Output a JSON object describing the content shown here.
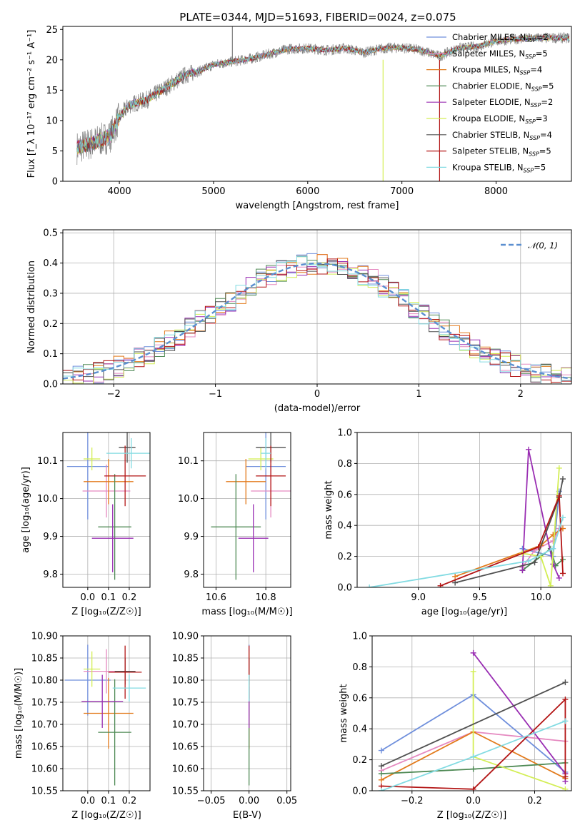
{
  "figure": {
    "title": "PLATE=0344, MJD=51693, FIBERID=0024, z=0.075"
  },
  "colors": {
    "Chabrier MILES": "#6f8fdc",
    "Salpeter MILES": "#e589c0",
    "Kroupa MILES": "#e27a1b",
    "Chabrier ELODIE": "#4f8a55",
    "Salpeter ELODIE": "#9a2fb3",
    "Kroupa ELODIE": "#d3ee55",
    "Chabrier STELIB": "#505050",
    "Salpeter STELIB": "#b31515",
    "Kroupa STELIB": "#82dbe2",
    "gaussian": "#5b8fd0",
    "data_spectrum": "#808080"
  },
  "chart_data": [
    {
      "id": "spectrum",
      "type": "line",
      "title": "PLATE=0344, MJD=51693, FIBERID=0024, z=0.075",
      "xlabel": "wavelength [Angstrom, rest frame]",
      "ylabel": "Flux [f_λ 10⁻¹⁷ erg cm⁻² s⁻¹ A⁻¹]",
      "xlim": [
        3400,
        8800
      ],
      "ylim": [
        0,
        25.5
      ],
      "xticks": [
        4000,
        5000,
        6000,
        7000,
        8000
      ],
      "yticks": [
        0,
        5,
        10,
        15,
        20,
        25
      ],
      "grid": false,
      "legend_position": "upper right",
      "legend": [
        {
          "name": "Chabrier MILES",
          "nssp": 2
        },
        {
          "name": "Salpeter MILES",
          "nssp": 5
        },
        {
          "name": "Kroupa MILES",
          "nssp": 4
        },
        {
          "name": "Chabrier ELODIE",
          "nssp": 5
        },
        {
          "name": "Salpeter ELODIE",
          "nssp": 2
        },
        {
          "name": "Kroupa ELODIE",
          "nssp": 3
        },
        {
          "name": "Chabrier STELIB",
          "nssp": 4
        },
        {
          "name": "Salpeter STELIB",
          "nssp": 5
        },
        {
          "name": "Kroupa STELIB",
          "nssp": 5
        }
      ],
      "continuum_x": [
        3550,
        3700,
        3900,
        4000,
        4100,
        4300,
        4500,
        4700,
        4860,
        5000,
        5200,
        5400,
        5600,
        5800,
        6000,
        6200,
        6400,
        6600,
        6800,
        7000,
        7200,
        7400,
        7600,
        7800,
        8000,
        8200,
        8400,
        8780
      ],
      "continuum_y": [
        5.5,
        6.2,
        7.4,
        10.5,
        12.5,
        13.5,
        15.5,
        17.5,
        18.2,
        19.2,
        19.7,
        20.2,
        21.0,
        21.8,
        21.9,
        21.6,
        21.9,
        21.2,
        21.9,
        22.0,
        21.6,
        20.6,
        21.9,
        22.2,
        23.1,
        23.4,
        23.6,
        23.6
      ],
      "spikes": [
        {
          "x": 5200,
          "y": 25.5
        },
        {
          "x": 6800,
          "y": 0
        },
        {
          "x": 7400,
          "y": 0
        }
      ]
    },
    {
      "id": "residuals",
      "type": "histogram",
      "xlabel": "(data-model)/error",
      "ylabel": "Normed distribution",
      "xlim": [
        -2.5,
        2.5
      ],
      "ylim": [
        0,
        0.51
      ],
      "xticks": [
        -2,
        -1,
        0,
        1,
        2
      ],
      "yticks": [
        0.0,
        0.1,
        0.2,
        0.3,
        0.4,
        0.5
      ],
      "grid": true,
      "bin_width": 0.1,
      "gaussian_label": "𝒩(0, 1)",
      "legend_position": "upper right"
    },
    {
      "id": "age-vs-z",
      "type": "errorbar",
      "xlabel": "Z [log₁₀(Z/Z☉)]",
      "ylabel": "age  [log₁₀(age/yr)]",
      "xlim": [
        -0.12,
        0.3
      ],
      "ylim": [
        9.765,
        10.175
      ],
      "xticks": [
        0.0,
        0.1,
        0.2
      ],
      "yticks": [
        9.8,
        9.9,
        10.0,
        10.1
      ],
      "grid": true,
      "series": [
        {
          "name": "Chabrier MILES",
          "x": 0.0,
          "xerr": 0.1,
          "y": 10.085,
          "yerr": 0.14
        },
        {
          "name": "Salpeter MILES",
          "x": 0.09,
          "xerr": 0.115,
          "y": 10.02,
          "yerr": 0.07
        },
        {
          "name": "Kroupa MILES",
          "x": 0.1,
          "xerr": 0.12,
          "y": 10.045,
          "yerr": 0.06
        },
        {
          "name": "Chabrier ELODIE",
          "x": 0.13,
          "xerr": 0.08,
          "y": 9.925,
          "yerr": 0.14
        },
        {
          "name": "Salpeter ELODIE",
          "x": 0.12,
          "xerr": 0.1,
          "y": 9.895,
          "yerr": 0.09
        },
        {
          "name": "Kroupa ELODIE",
          "x": 0.02,
          "xerr": 0.04,
          "y": 10.105,
          "yerr": 0.03
        },
        {
          "name": "Chabrier STELIB",
          "x": 0.19,
          "xerr": 0.04,
          "y": 10.135,
          "yerr": 0.04
        },
        {
          "name": "Salpeter STELIB",
          "x": 0.18,
          "xerr": 0.1,
          "y": 10.06,
          "yerr": 0.08
        },
        {
          "name": "Kroupa STELIB",
          "x": 0.21,
          "xerr": 0.12,
          "y": 10.12,
          "yerr": 0.04
        }
      ]
    },
    {
      "id": "age-vs-mass",
      "type": "errorbar",
      "xlabel": "mass [log₁₀(M/M☉)]",
      "ylabel": "",
      "xlim": [
        10.55,
        10.9
      ],
      "ylim": [
        9.765,
        10.175
      ],
      "xticks": [
        10.6,
        10.8
      ],
      "yticks": [
        9.8,
        9.9,
        10.0,
        10.1
      ],
      "grid": true,
      "series": [
        {
          "name": "Chabrier MILES",
          "x": 10.8,
          "xerr": 0.08,
          "y": 10.085,
          "yerr": 0.14
        },
        {
          "name": "Salpeter MILES",
          "x": 10.82,
          "xerr": 0.08,
          "y": 10.02,
          "yerr": 0.07
        },
        {
          "name": "Kroupa MILES",
          "x": 10.72,
          "xerr": 0.08,
          "y": 10.045,
          "yerr": 0.06
        },
        {
          "name": "Chabrier ELODIE",
          "x": 10.68,
          "xerr": 0.1,
          "y": 9.925,
          "yerr": 0.14
        },
        {
          "name": "Salpeter ELODIE",
          "x": 10.75,
          "xerr": 0.06,
          "y": 9.895,
          "yerr": 0.09
        },
        {
          "name": "Kroupa ELODIE",
          "x": 10.78,
          "xerr": 0.05,
          "y": 10.105,
          "yerr": 0.03
        },
        {
          "name": "Chabrier STELIB",
          "x": 10.82,
          "xerr": 0.06,
          "y": 10.135,
          "yerr": 0.04
        },
        {
          "name": "Salpeter STELIB",
          "x": 10.82,
          "xerr": 0.06,
          "y": 10.06,
          "yerr": 0.08
        },
        {
          "name": "Kroupa STELIB",
          "x": 10.8,
          "xerr": 0.02,
          "y": 10.12,
          "yerr": 0.04
        }
      ]
    },
    {
      "id": "weight-vs-age",
      "type": "line",
      "xlabel": "age  [log₁₀(age/yr)]",
      "ylabel": "mass weight",
      "xlim": [
        8.5,
        10.25
      ],
      "ylim": [
        0,
        1.0
      ],
      "xticks": [
        9.0,
        9.5,
        10.0
      ],
      "yticks": [
        0.0,
        0.2,
        0.4,
        0.6,
        0.8,
        1.0
      ],
      "grid": true,
      "series": [
        {
          "name": "Chabrier MILES",
          "x": [
            9.85,
            10.1,
            10.15
          ],
          "y": [
            0.25,
            0.2,
            0.62
          ]
        },
        {
          "name": "Salpeter MILES",
          "x": [
            9.85,
            9.95,
            10.1,
            10.15
          ],
          "y": [
            0.13,
            0.24,
            0.3,
            0.38
          ]
        },
        {
          "name": "Kroupa MILES",
          "x": [
            9.3,
            10.0,
            10.1,
            10.18
          ],
          "y": [
            0.07,
            0.27,
            0.34,
            0.38
          ]
        },
        {
          "name": "Chabrier ELODIE",
          "x": [
            9.85,
            10.0,
            10.08,
            10.12,
            10.18
          ],
          "y": [
            0.11,
            0.2,
            0.25,
            0.14,
            0.18
          ]
        },
        {
          "name": "Salpeter ELODIE",
          "x": [
            9.85,
            9.9,
            10.1,
            10.15
          ],
          "y": [
            0.11,
            0.89,
            0.15,
            0.06
          ]
        },
        {
          "name": "Kroupa ELODIE",
          "x": [
            9.85,
            10.0,
            10.08,
            10.15
          ],
          "y": [
            0.22,
            0.2,
            0.01,
            0.77
          ]
        },
        {
          "name": "Chabrier STELIB",
          "x": [
            9.3,
            9.95,
            10.15,
            10.18
          ],
          "y": [
            0.03,
            0.16,
            0.58,
            0.7
          ]
        },
        {
          "name": "Salpeter STELIB",
          "x": [
            9.18,
            9.98,
            10.15,
            10.18
          ],
          "y": [
            0.01,
            0.26,
            0.59,
            0.09
          ]
        },
        {
          "name": "Kroupa STELIB",
          "x": [
            8.6,
            9.9,
            10.1,
            10.18
          ],
          "y": [
            0.0,
            0.17,
            0.25,
            0.45
          ]
        }
      ]
    },
    {
      "id": "mass-vs-z",
      "type": "errorbar",
      "xlabel": "Z [log₁₀(Z/Z☉)]",
      "ylabel": "mass [log₁₀(M/M☉)]",
      "xlim": [
        -0.12,
        0.3
      ],
      "ylim": [
        10.55,
        10.9
      ],
      "xticks": [
        0.0,
        0.1,
        0.2
      ],
      "yticks": [
        10.55,
        10.6,
        10.65,
        10.7,
        10.75,
        10.8,
        10.85,
        10.9
      ],
      "grid": true,
      "series": [
        {
          "name": "Chabrier MILES",
          "x": 0.0,
          "xerr": 0.11,
          "y": 10.8,
          "yerr": 0.08
        },
        {
          "name": "Salpeter MILES",
          "x": 0.09,
          "xerr": 0.11,
          "y": 10.82,
          "yerr": 0.05
        },
        {
          "name": "Kroupa MILES",
          "x": 0.1,
          "xerr": 0.12,
          "y": 10.725,
          "yerr": 0.08
        },
        {
          "name": "Chabrier ELODIE",
          "x": 0.13,
          "xerr": 0.08,
          "y": 10.682,
          "yerr": 0.12
        },
        {
          "name": "Salpeter ELODIE",
          "x": 0.07,
          "xerr": 0.1,
          "y": 10.752,
          "yerr": 0.06
        },
        {
          "name": "Kroupa ELODIE",
          "x": 0.02,
          "xerr": 0.04,
          "y": 10.825,
          "yerr": 0.04
        },
        {
          "name": "Chabrier STELIB",
          "x": 0.18,
          "xerr": 0.05,
          "y": 10.82,
          "yerr": 0.03
        },
        {
          "name": "Salpeter STELIB",
          "x": 0.18,
          "xerr": 0.08,
          "y": 10.818,
          "yerr": 0.06
        },
        {
          "name": "Kroupa STELIB",
          "x": 0.2,
          "xerr": 0.08,
          "y": 10.782,
          "yerr": 0.03
        }
      ]
    },
    {
      "id": "mass-vs-ebv",
      "type": "errorbar",
      "xlabel": "E(B-V)",
      "ylabel": "",
      "xlim": [
        -0.06,
        0.055
      ],
      "ylim": [
        10.55,
        10.9
      ],
      "xticks": [
        -0.05,
        0.0,
        0.05
      ],
      "yticks": [
        10.55,
        10.6,
        10.65,
        10.7,
        10.75,
        10.8,
        10.85,
        10.9
      ],
      "grid": true,
      "series": [
        {
          "name": "Chabrier MILES",
          "x": 0.0,
          "xerr": 0.0,
          "y": 10.8,
          "yerr": 0.08
        },
        {
          "name": "Salpeter MILES",
          "x": 0.0,
          "xerr": 0.0,
          "y": 10.82,
          "yerr": 0.05
        },
        {
          "name": "Kroupa MILES",
          "x": 0.0,
          "xerr": 0.0,
          "y": 10.725,
          "yerr": 0.08
        },
        {
          "name": "Chabrier ELODIE",
          "x": 0.0,
          "xerr": 0.0,
          "y": 10.682,
          "yerr": 0.12
        },
        {
          "name": "Salpeter ELODIE",
          "x": 0.0,
          "xerr": 0.0,
          "y": 10.752,
          "yerr": 0.06
        },
        {
          "name": "Kroupa ELODIE",
          "x": 0.0,
          "xerr": 0.0,
          "y": 10.825,
          "yerr": 0.04
        },
        {
          "name": "Chabrier STELIB",
          "x": 0.0,
          "xerr": 0.0,
          "y": 10.82,
          "yerr": 0.03
        },
        {
          "name": "Salpeter STELIB",
          "x": 0.0,
          "xerr": 0.0,
          "y": 10.818,
          "yerr": 0.06
        },
        {
          "name": "Kroupa STELIB",
          "x": 0.0,
          "xerr": 0.0,
          "y": 10.782,
          "yerr": 0.03
        }
      ]
    },
    {
      "id": "weight-vs-z",
      "type": "line",
      "xlabel": "Z [log₁₀(Z/Z☉)]",
      "ylabel": "mass weight",
      "xlim": [
        -0.33,
        0.32
      ],
      "ylim": [
        0,
        1.0
      ],
      "xticks": [
        -0.2,
        0.0,
        0.2
      ],
      "yticks": [
        0.0,
        0.2,
        0.4,
        0.6,
        0.8,
        1.0
      ],
      "grid": true,
      "series": [
        {
          "name": "Chabrier MILES",
          "x": [
            -0.3,
            0.0,
            0.3
          ],
          "y": [
            0.26,
            0.62,
            0.12
          ]
        },
        {
          "name": "Salpeter MILES",
          "x": [
            -0.3,
            0.0,
            0.3
          ],
          "y": [
            0.13,
            0.38,
            0.32
          ]
        },
        {
          "name": "Kroupa MILES",
          "x": [
            -0.3,
            0.0,
            0.3
          ],
          "y": [
            0.07,
            0.38,
            0.08
          ]
        },
        {
          "name": "Chabrier ELODIE",
          "x": [
            -0.3,
            0.0,
            0.3
          ],
          "y": [
            0.11,
            0.14,
            0.18
          ]
        },
        {
          "name": "Salpeter ELODIE",
          "x": [
            0.0,
            0.3,
            0.3
          ],
          "y": [
            0.89,
            0.11,
            0.06
          ]
        },
        {
          "name": "Kroupa ELODIE",
          "x": [
            0.0,
            0.0,
            0.3
          ],
          "y": [
            0.77,
            0.22,
            0.01
          ]
        },
        {
          "name": "Chabrier STELIB",
          "x": [
            -0.3,
            0.3
          ],
          "y": [
            0.16,
            0.7
          ]
        },
        {
          "name": "Salpeter STELIB",
          "x": [
            -0.3,
            0.0,
            0.3,
            0.3
          ],
          "y": [
            0.03,
            0.01,
            0.59,
            0.09
          ]
        },
        {
          "name": "Kroupa STELIB",
          "x": [
            -0.3,
            0.0,
            0.3
          ],
          "y": [
            0.0,
            0.22,
            0.45
          ]
        }
      ]
    }
  ]
}
